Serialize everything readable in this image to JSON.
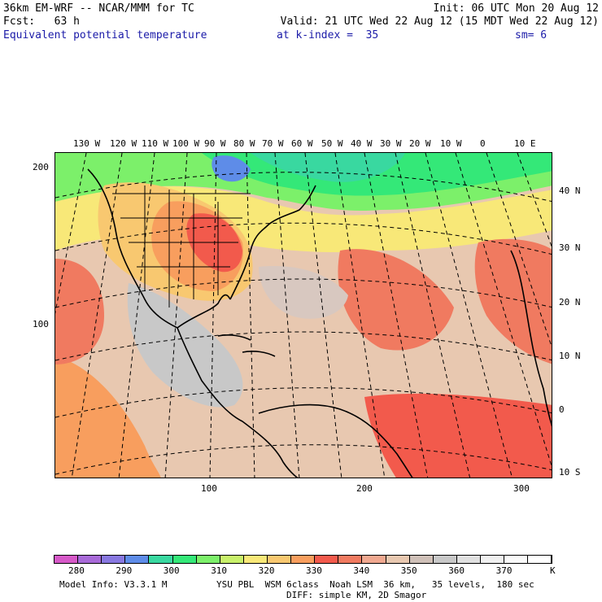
{
  "header": {
    "model": "36km EM-WRF -- NCAR/MMM for TC",
    "init": "Init: 06 UTC Mon 20 Aug 12",
    "fcst": "Fcst:   63 h",
    "valid": "Valid: 21 UTC Wed 22 Aug 12 (15 MDT Wed 22 Aug 12)",
    "field": "Equivalent potential temperature",
    "level": "at k-index =  35",
    "smooth": "sm= 6"
  },
  "lon_labels": [
    "130 W",
    "120 W",
    "110 W",
    "100 W",
    "90 W",
    "80 W",
    "70 W",
    "60 W",
    "50 W",
    "40 W",
    "30 W",
    "20 W",
    "10 W",
    "0",
    "10 E"
  ],
  "lat_labels": [
    "40 N",
    "30 N",
    "20 N",
    "10 N",
    "0",
    "10 S"
  ],
  "grid_y_labels": [
    "200",
    "100"
  ],
  "grid_x_labels": [
    "100",
    "200",
    "300"
  ],
  "colorbar": {
    "colors": [
      "#d659c8",
      "#a86ad8",
      "#8878e0",
      "#5e8ce8",
      "#39d8a0",
      "#34e878",
      "#7cf06a",
      "#c8f06a",
      "#f8e878",
      "#f8c870",
      "#f89e5e",
      "#f25a4c",
      "#f07a60",
      "#f0a890",
      "#e8c8b0",
      "#cfc0b8",
      "#c8c8c8",
      "#e0e0e0",
      "#f0f0f0",
      "#fafafa",
      "#ffffff"
    ],
    "labels": [
      "280",
      "290",
      "300",
      "310",
      "320",
      "330",
      "340",
      "350",
      "360",
      "370"
    ],
    "unit": "K"
  },
  "footer": {
    "model_info": "Model Info: V3.3.1 M",
    "physics": "YSU PBL  WSM 6class  Noah LSM  36 km,   35 levels,  180 sec",
    "diff": "DIFF: simple KM, 2D Smagor"
  }
}
